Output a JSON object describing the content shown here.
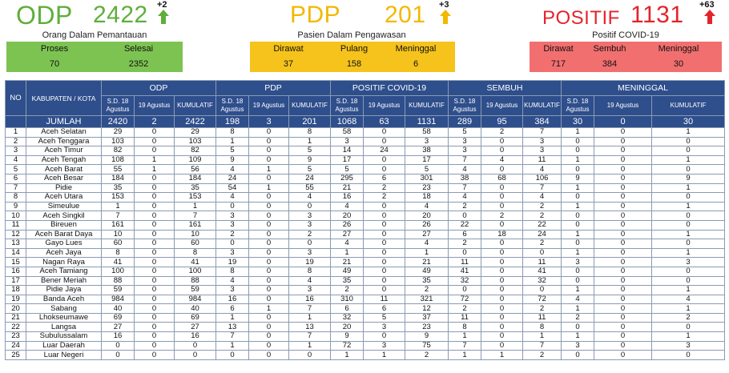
{
  "summary": {
    "odp": {
      "label": "ODP",
      "total": "2422",
      "delta": "+2",
      "subtitle": "Orang Dalam Pemantauan",
      "color": "#5fae3b",
      "box_color": "#7dc352",
      "cols": [
        {
          "label": "Proses",
          "value": "70"
        },
        {
          "label": "Selesai",
          "value": "2352"
        }
      ]
    },
    "pdp": {
      "label": "PDP",
      "total": "201",
      "delta": "+3",
      "subtitle": "Pasien Dalam Pengawasan",
      "color": "#f2b800",
      "box_color": "#f5c31b",
      "cols": [
        {
          "label": "Dirawat",
          "value": "37"
        },
        {
          "label": "Pulang",
          "value": "158"
        },
        {
          "label": "Meninggal",
          "value": "6"
        }
      ]
    },
    "positif": {
      "label": "POSITIF",
      "total": "1131",
      "delta": "+63",
      "subtitle": "Positif COVID-19",
      "color": "#e3242b",
      "box_color": "#f26f70",
      "cols": [
        {
          "label": "Dirawat",
          "value": "717"
        },
        {
          "label": "Sembuh",
          "value": "384"
        },
        {
          "label": "Meninggal",
          "value": "30"
        }
      ]
    }
  },
  "table": {
    "no_header": "NO",
    "region_header": "KABUPATEN / KOTA",
    "groups": [
      "ODP",
      "PDP",
      "POSITIF COVID-19",
      "SEMBUH",
      "MENINGGAL"
    ],
    "sub_headers": [
      [
        "S.D. 18 Agustus",
        "19 Agustus",
        "KUMULATIF"
      ],
      [
        "S.D. 18 Agustus",
        "19 Agustus",
        "KUMULATIF"
      ],
      [
        "S.D. 18 Agustus",
        "19 Agustus",
        "KUMULATIF"
      ],
      [
        "S.D. 18 Agustus",
        "19 Agustus",
        "KUMULATIF"
      ],
      [
        "S.D. 18 Agustus",
        "19 Agustus",
        "KUMULATIF"
      ]
    ],
    "total_label": "JUMLAH",
    "totals": [
      "2420",
      "2",
      "2422",
      "198",
      "3",
      "201",
      "1068",
      "63",
      "1131",
      "289",
      "95",
      "384",
      "30",
      "0",
      "30"
    ],
    "rows": [
      {
        "no": "1",
        "name": "Aceh Selatan",
        "v": [
          "29",
          "0",
          "29",
          "8",
          "0",
          "8",
          "58",
          "0",
          "58",
          "5",
          "2",
          "7",
          "1",
          "0",
          "1"
        ]
      },
      {
        "no": "2",
        "name": "Aceh Tenggara",
        "v": [
          "103",
          "0",
          "103",
          "1",
          "0",
          "1",
          "3",
          "0",
          "3",
          "3",
          "0",
          "3",
          "0",
          "0",
          "0"
        ]
      },
      {
        "no": "3",
        "name": "Aceh Timur",
        "v": [
          "82",
          "0",
          "82",
          "5",
          "0",
          "5",
          "14",
          "24",
          "38",
          "3",
          "0",
          "3",
          "0",
          "0",
          "0"
        ]
      },
      {
        "no": "4",
        "name": "Aceh Tengah",
        "v": [
          "108",
          "1",
          "109",
          "9",
          "0",
          "9",
          "17",
          "0",
          "17",
          "7",
          "4",
          "11",
          "1",
          "0",
          "1"
        ]
      },
      {
        "no": "5",
        "name": "Aceh Barat",
        "v": [
          "55",
          "1",
          "56",
          "4",
          "1",
          "5",
          "5",
          "0",
          "5",
          "4",
          "0",
          "4",
          "0",
          "0",
          "0"
        ]
      },
      {
        "no": "6",
        "name": "Aceh Besar",
        "v": [
          "184",
          "0",
          "184",
          "24",
          "0",
          "24",
          "295",
          "6",
          "301",
          "38",
          "68",
          "106",
          "9",
          "0",
          "9"
        ]
      },
      {
        "no": "7",
        "name": "Pidie",
        "v": [
          "35",
          "0",
          "35",
          "54",
          "1",
          "55",
          "21",
          "2",
          "23",
          "7",
          "0",
          "7",
          "1",
          "0",
          "1"
        ]
      },
      {
        "no": "8",
        "name": "Aceh Utara",
        "v": [
          "153",
          "0",
          "153",
          "4",
          "0",
          "4",
          "16",
          "2",
          "18",
          "4",
          "0",
          "4",
          "0",
          "0",
          "0"
        ]
      },
      {
        "no": "9",
        "name": "Simeulue",
        "v": [
          "1",
          "0",
          "1",
          "0",
          "0",
          "0",
          "4",
          "0",
          "4",
          "2",
          "0",
          "2",
          "1",
          "0",
          "1"
        ]
      },
      {
        "no": "10",
        "name": "Aceh Singkil",
        "v": [
          "7",
          "0",
          "7",
          "3",
          "0",
          "3",
          "20",
          "0",
          "20",
          "0",
          "2",
          "2",
          "0",
          "0",
          "0"
        ]
      },
      {
        "no": "11",
        "name": "Bireuen",
        "v": [
          "161",
          "0",
          "161",
          "3",
          "0",
          "3",
          "26",
          "0",
          "26",
          "22",
          "0",
          "22",
          "0",
          "0",
          "0"
        ]
      },
      {
        "no": "12",
        "name": "Aceh Barat Daya",
        "v": [
          "10",
          "0",
          "10",
          "2",
          "0",
          "2",
          "27",
          "0",
          "27",
          "6",
          "18",
          "24",
          "1",
          "0",
          "1"
        ]
      },
      {
        "no": "13",
        "name": "Gayo Lues",
        "v": [
          "60",
          "0",
          "60",
          "0",
          "0",
          "0",
          "4",
          "0",
          "4",
          "2",
          "0",
          "2",
          "0",
          "0",
          "0"
        ]
      },
      {
        "no": "14",
        "name": "Aceh Jaya",
        "v": [
          "8",
          "0",
          "8",
          "3",
          "0",
          "3",
          "1",
          "0",
          "1",
          "0",
          "0",
          "0",
          "1",
          "0",
          "1"
        ]
      },
      {
        "no": "15",
        "name": "Nagan Raya",
        "v": [
          "41",
          "0",
          "41",
          "19",
          "0",
          "19",
          "21",
          "0",
          "21",
          "11",
          "0",
          "11",
          "3",
          "0",
          "3"
        ]
      },
      {
        "no": "16",
        "name": "Aceh Tamiang",
        "v": [
          "100",
          "0",
          "100",
          "8",
          "0",
          "8",
          "49",
          "0",
          "49",
          "41",
          "0",
          "41",
          "0",
          "0",
          "0"
        ]
      },
      {
        "no": "17",
        "name": "Bener Meriah",
        "v": [
          "88",
          "0",
          "88",
          "4",
          "0",
          "4",
          "35",
          "0",
          "35",
          "32",
          "0",
          "32",
          "0",
          "0",
          "0"
        ]
      },
      {
        "no": "18",
        "name": "Pidie Jaya",
        "v": [
          "59",
          "0",
          "59",
          "3",
          "0",
          "3",
          "2",
          "0",
          "2",
          "0",
          "0",
          "0",
          "1",
          "0",
          "1"
        ]
      },
      {
        "no": "19",
        "name": "Banda Aceh",
        "v": [
          "984",
          "0",
          "984",
          "16",
          "0",
          "16",
          "310",
          "11",
          "321",
          "72",
          "0",
          "72",
          "4",
          "0",
          "4"
        ]
      },
      {
        "no": "20",
        "name": "Sabang",
        "v": [
          "40",
          "0",
          "40",
          "6",
          "1",
          "7",
          "6",
          "6",
          "12",
          "2",
          "0",
          "2",
          "1",
          "0",
          "1"
        ]
      },
      {
        "no": "21",
        "name": "Lhokseumawe",
        "v": [
          "69",
          "0",
          "69",
          "1",
          "0",
          "1",
          "32",
          "5",
          "37",
          "11",
          "0",
          "11",
          "2",
          "0",
          "2"
        ]
      },
      {
        "no": "22",
        "name": "Langsa",
        "v": [
          "27",
          "0",
          "27",
          "13",
          "0",
          "13",
          "20",
          "3",
          "23",
          "8",
          "0",
          "8",
          "0",
          "0",
          "0"
        ]
      },
      {
        "no": "23",
        "name": "Subulussalam",
        "v": [
          "16",
          "0",
          "16",
          "7",
          "0",
          "7",
          "9",
          "0",
          "9",
          "1",
          "0",
          "1",
          "1",
          "0",
          "1"
        ]
      },
      {
        "no": "24",
        "name": "Luar Daerah",
        "v": [
          "0",
          "0",
          "0",
          "1",
          "0",
          "1",
          "72",
          "3",
          "75",
          "7",
          "0",
          "7",
          "3",
          "0",
          "3"
        ]
      },
      {
        "no": "25",
        "name": "Luar Negeri",
        "v": [
          "0",
          "0",
          "0",
          "0",
          "0",
          "0",
          "1",
          "1",
          "2",
          "1",
          "1",
          "2",
          "0",
          "0",
          "0"
        ]
      }
    ]
  }
}
